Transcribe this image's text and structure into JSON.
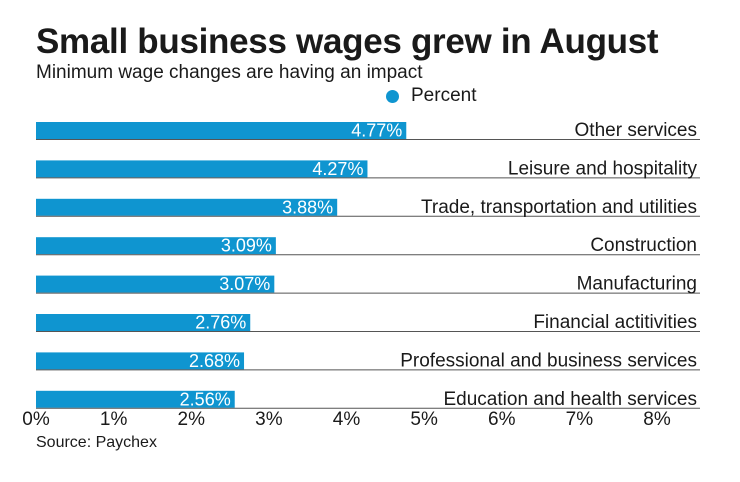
{
  "title": "Small business wages grew in August",
  "subtitle": "Minimum wage changes are having an impact",
  "source": "Source: Paychex",
  "colors": {
    "bar": "#0f95d0",
    "rule": "#555555",
    "value_text": "#ffffff"
  },
  "chart_data": {
    "type": "bar",
    "orientation": "horizontal",
    "title": "Small business wages grew in August",
    "subtitle": "Minimum wage changes are having an impact",
    "categories": [
      "Other services",
      "Leisure and hospitality",
      "Trade, transportation and utilities",
      "Construction",
      "Manufacturing",
      "Financial actitivities",
      "Professional and business services",
      "Education and health services"
    ],
    "series": [
      {
        "name": "Percent",
        "values": [
          4.77,
          4.27,
          3.88,
          3.09,
          3.07,
          2.76,
          2.68,
          2.56
        ]
      }
    ],
    "value_labels": [
      "4.77%",
      "4.27%",
      "3.88%",
      "3.09%",
      "3.07%",
      "2.76%",
      "2.68%",
      "2.56%"
    ],
    "xlim": [
      0,
      8
    ],
    "x_ticks": [
      0,
      1,
      2,
      3,
      4,
      5,
      6,
      7,
      8
    ],
    "x_tick_labels": [
      "0%",
      "1%",
      "2%",
      "3%",
      "4%",
      "5%",
      "6%",
      "7%",
      "8%"
    ],
    "legend": {
      "position": "top",
      "entries": [
        "Percent"
      ]
    },
    "grid": false
  }
}
